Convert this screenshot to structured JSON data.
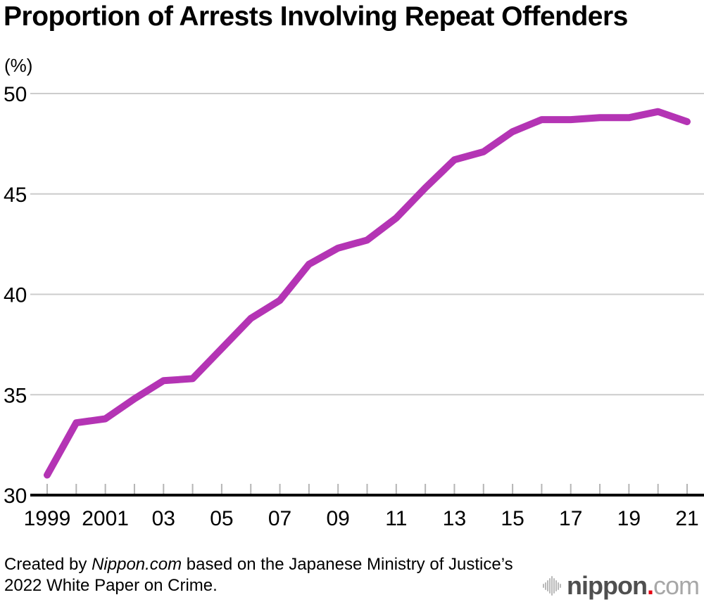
{
  "chart_data": {
    "type": "line",
    "title": "Proportion of Arrests Involving Repeat Offenders",
    "unit_label": "(%)",
    "x": [
      1999,
      2000,
      2001,
      2002,
      2003,
      2004,
      2005,
      2006,
      2007,
      2008,
      2009,
      2010,
      2011,
      2012,
      2013,
      2014,
      2015,
      2016,
      2017,
      2018,
      2019,
      2020,
      2021
    ],
    "values": [
      31.0,
      33.6,
      33.8,
      34.8,
      35.7,
      35.8,
      37.3,
      38.8,
      39.7,
      41.5,
      42.3,
      42.7,
      43.8,
      45.3,
      46.7,
      47.1,
      48.1,
      48.7,
      48.7,
      48.8,
      48.8,
      49.1,
      48.6
    ],
    "ylim": [
      30,
      50
    ],
    "yticks": [
      30,
      35,
      40,
      45,
      50
    ],
    "xtick_labels": [
      "1999",
      "2001",
      "03",
      "05",
      "07",
      "09",
      "11",
      "13",
      "15",
      "17",
      "19",
      "21"
    ],
    "xtick_step": 2,
    "grid": "horizontal",
    "legend": "none",
    "line_color": "#b434b4"
  },
  "colors": {
    "line": "#b434b4",
    "gridline": "#cccccc",
    "tick": "#b5b5b5",
    "axis": "#000000"
  },
  "footer": {
    "prefix": "Created by ",
    "source": "Nippon.com",
    "line1_rest": " based on the Japanese Ministry of Justice’s",
    "line2": "2022 White Paper on Crime."
  },
  "logo": {
    "icon": "sound-wave-icon",
    "name": "nippon",
    "dot": ".",
    "tld": "com"
  }
}
